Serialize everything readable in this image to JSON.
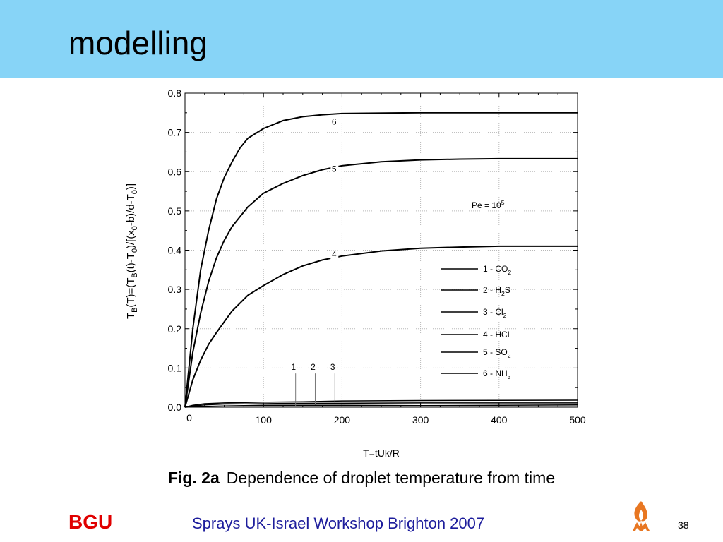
{
  "slide": {
    "title": "modelling",
    "caption_fig": "Fig. 2a",
    "caption_text": "Dependence of droplet temperature from time",
    "footer_brand": "BGU",
    "footer_event": "Sprays UK-Israel Workshop Brighton 2007",
    "page_number": "38",
    "header_color": "#87d4f7",
    "brand_color": "#e00000",
    "event_color": "#1d1d9c",
    "logo_icon": "flame-logo-icon",
    "logo_color": "#e87722"
  },
  "chart_data": {
    "type": "line",
    "title": "",
    "xlabel": "T=tUk/R",
    "ylabel_parts": [
      {
        "t": "T"
      },
      {
        "t": "B",
        "sub": true
      },
      {
        "t": "(T)=(T"
      },
      {
        "t": "B",
        "sub": true
      },
      {
        "t": "(t)-T"
      },
      {
        "t": "0",
        "sub": true
      },
      {
        "t": ")/[(x"
      },
      {
        "t": "0",
        "sub": true
      },
      {
        "t": "-b)/d-T"
      },
      {
        "t": "0",
        "sub": true
      },
      {
        "t": ")]"
      }
    ],
    "xlim": [
      0,
      500
    ],
    "ylim": [
      0,
      0.8
    ],
    "x_ticks": [
      0,
      100,
      200,
      300,
      400,
      500
    ],
    "x_tick_labels": [
      "0",
      "100",
      "200",
      "300",
      "400",
      "500"
    ],
    "y_ticks": [
      0,
      0.1,
      0.2,
      0.3,
      0.4,
      0.5,
      0.6,
      0.7,
      0.8
    ],
    "y_tick_labels": [
      "0.0",
      "0.1",
      "0.2",
      "0.3",
      "0.4",
      "0.5",
      "0.6",
      "0.7",
      "0.8"
    ],
    "grid": true,
    "annotation": {
      "base": "Pe = 10",
      "sup": "5",
      "x": 395,
      "y": 0.5
    },
    "legend_position": "right",
    "legend": [
      {
        "num": "1",
        "parts": [
          {
            "t": "1 - CO"
          },
          {
            "t": "2",
            "sub": true
          }
        ]
      },
      {
        "num": "2",
        "parts": [
          {
            "t": "2 - H"
          },
          {
            "t": "2",
            "sub": true
          },
          {
            "t": "S"
          }
        ]
      },
      {
        "num": "3",
        "parts": [
          {
            "t": "3 - Cl"
          },
          {
            "t": "2",
            "sub": true
          }
        ]
      },
      {
        "num": "4",
        "parts": [
          {
            "t": "4 - HCL"
          }
        ]
      },
      {
        "num": "5",
        "parts": [
          {
            "t": "5 - SO"
          },
          {
            "t": "2",
            "sub": true
          }
        ]
      },
      {
        "num": "6",
        "parts": [
          {
            "t": "6 - NH"
          },
          {
            "t": "3",
            "sub": true
          }
        ]
      }
    ],
    "series": [
      {
        "label": "1",
        "label_at": {
          "x": 140,
          "y": 0.095
        },
        "label_leader_bottom": 0.003,
        "points": [
          [
            0,
            0
          ],
          [
            10,
            0.001
          ],
          [
            25,
            0.002
          ],
          [
            50,
            0.003
          ],
          [
            100,
            0.005
          ],
          [
            200,
            0.005
          ],
          [
            300,
            0.004
          ],
          [
            500,
            0.006
          ]
        ]
      },
      {
        "label": "2",
        "label_at": {
          "x": 165,
          "y": 0.095
        },
        "label_leader_bottom": 0.006,
        "points": [
          [
            0,
            0
          ],
          [
            10,
            0.003
          ],
          [
            25,
            0.006
          ],
          [
            50,
            0.008
          ],
          [
            100,
            0.009
          ],
          [
            150,
            0.01
          ],
          [
            200,
            0.01
          ],
          [
            300,
            0.011
          ],
          [
            500,
            0.011
          ]
        ]
      },
      {
        "label": "3",
        "label_at": {
          "x": 190,
          "y": 0.095
        },
        "label_leader_bottom": 0.011,
        "points": [
          [
            0,
            0
          ],
          [
            10,
            0.005
          ],
          [
            25,
            0.009
          ],
          [
            50,
            0.011
          ],
          [
            100,
            0.013
          ],
          [
            150,
            0.014
          ],
          [
            200,
            0.016
          ],
          [
            300,
            0.017
          ],
          [
            500,
            0.018
          ]
        ]
      },
      {
        "label": "4",
        "label_at": {
          "x": 190,
          "y": 0.382
        },
        "points": [
          [
            0,
            0
          ],
          [
            10,
            0.07
          ],
          [
            20,
            0.12
          ],
          [
            30,
            0.16
          ],
          [
            40,
            0.19
          ],
          [
            60,
            0.245
          ],
          [
            80,
            0.285
          ],
          [
            100,
            0.31
          ],
          [
            125,
            0.338
          ],
          [
            150,
            0.36
          ],
          [
            175,
            0.375
          ],
          [
            200,
            0.385
          ],
          [
            250,
            0.398
          ],
          [
            300,
            0.405
          ],
          [
            350,
            0.408
          ],
          [
            400,
            0.41
          ],
          [
            500,
            0.41
          ]
        ]
      },
      {
        "label": "5",
        "label_at": {
          "x": 190,
          "y": 0.6
        },
        "points": [
          [
            0,
            0
          ],
          [
            10,
            0.14
          ],
          [
            20,
            0.24
          ],
          [
            30,
            0.32
          ],
          [
            40,
            0.38
          ],
          [
            50,
            0.425
          ],
          [
            60,
            0.46
          ],
          [
            80,
            0.51
          ],
          [
            100,
            0.545
          ],
          [
            125,
            0.57
          ],
          [
            150,
            0.59
          ],
          [
            175,
            0.605
          ],
          [
            200,
            0.615
          ],
          [
            250,
            0.625
          ],
          [
            300,
            0.63
          ],
          [
            350,
            0.632
          ],
          [
            400,
            0.633
          ],
          [
            500,
            0.633
          ]
        ]
      },
      {
        "label": "6",
        "label_at": {
          "x": 190,
          "y": 0.72
        },
        "points": [
          [
            0,
            0
          ],
          [
            10,
            0.2
          ],
          [
            20,
            0.35
          ],
          [
            30,
            0.45
          ],
          [
            40,
            0.53
          ],
          [
            50,
            0.585
          ],
          [
            60,
            0.625
          ],
          [
            70,
            0.66
          ],
          [
            80,
            0.685
          ],
          [
            100,
            0.71
          ],
          [
            125,
            0.73
          ],
          [
            150,
            0.74
          ],
          [
            175,
            0.745
          ],
          [
            200,
            0.748
          ],
          [
            300,
            0.75
          ],
          [
            500,
            0.75
          ]
        ]
      }
    ]
  }
}
